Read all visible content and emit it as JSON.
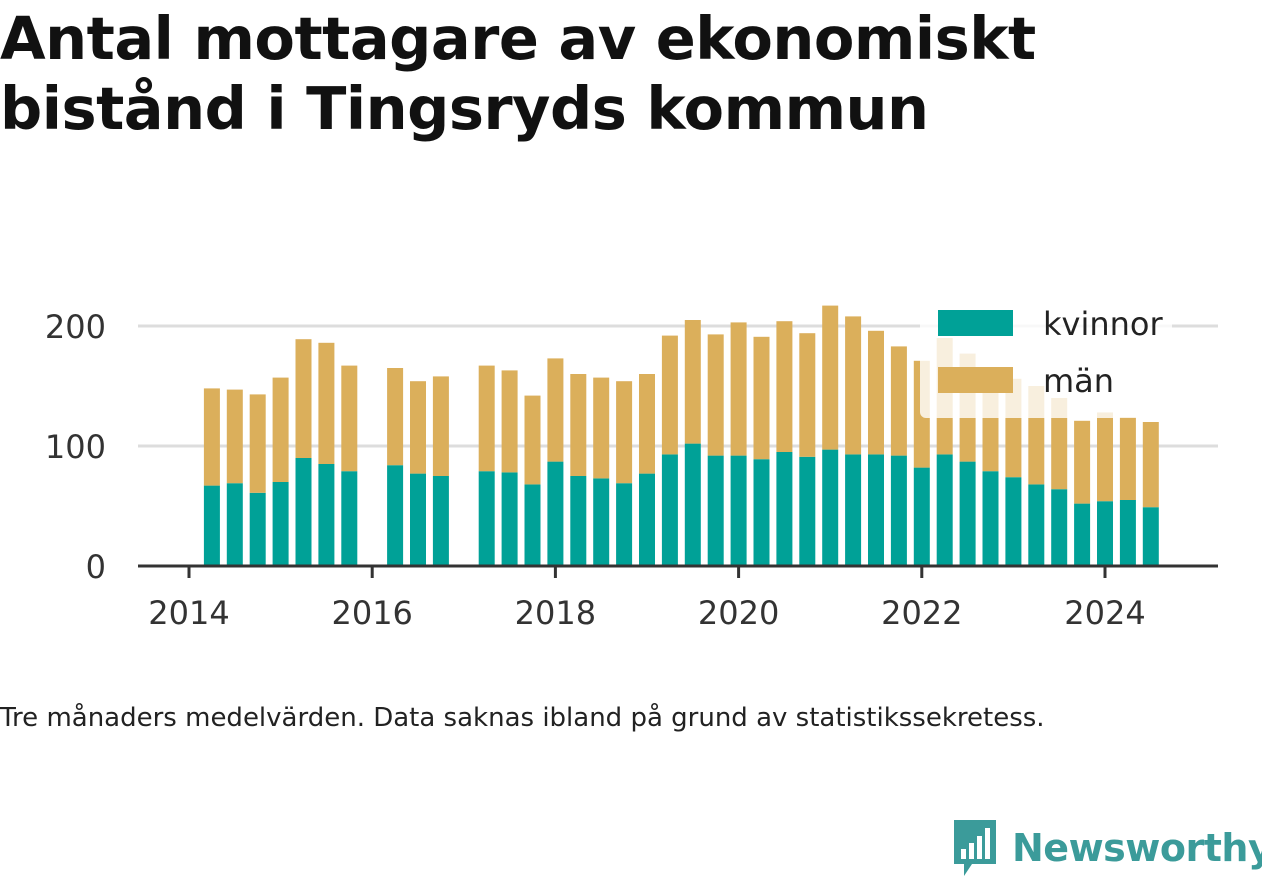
{
  "title": "Antal mottagare av ekonomiskt bistånd i Tingsryds kommun",
  "note": "Tre månaders medelvärden. Data saknas ibland på grund av statistikssekretess.",
  "brand": {
    "name": "Newsworthy",
    "color": "#3b9b9a",
    "icon": "bar-chart-speech-bubble-icon"
  },
  "colors": {
    "kvinnor": "#00a197",
    "man": "#dbaf5b",
    "grid": "#dddddd",
    "axis": "#333333"
  },
  "chart_data": {
    "type": "bar",
    "stacked": true,
    "ylim": [
      0,
      220
    ],
    "yticks": [
      0,
      100,
      200
    ],
    "xticks": [
      "2014",
      "2016",
      "2018",
      "2020",
      "2022",
      "2024"
    ],
    "xlim": [
      "2013-09",
      "2025-06"
    ],
    "legend_position": "top-right",
    "grid": true,
    "x": [
      "2014-04",
      "2014-07",
      "2014-10",
      "2015-01",
      "2015-04",
      "2015-07",
      "2015-10",
      "2016-01",
      "2016-04",
      "2016-07",
      "2016-10",
      "2017-01",
      "2017-04",
      "2017-07",
      "2017-10",
      "2018-01",
      "2018-04",
      "2018-07",
      "2018-10",
      "2019-01",
      "2019-04",
      "2019-07",
      "2019-10",
      "2020-01",
      "2020-04",
      "2020-07",
      "2020-10",
      "2021-01",
      "2021-04",
      "2021-07",
      "2021-10",
      "2022-01",
      "2022-04",
      "2022-07",
      "2022-10",
      "2023-01",
      "2023-04",
      "2023-07",
      "2023-10",
      "2024-01",
      "2024-04",
      "2024-07"
    ],
    "series": [
      {
        "name": "kvinnor",
        "values": [
          67,
          69,
          61,
          70,
          90,
          85,
          79,
          null,
          84,
          77,
          75,
          null,
          79,
          78,
          68,
          87,
          75,
          73,
          69,
          77,
          93,
          102,
          92,
          92,
          89,
          95,
          91,
          97,
          93,
          93,
          92,
          82,
          93,
          87,
          79,
          74,
          68,
          64,
          52,
          54,
          55,
          49
        ]
      },
      {
        "name": "män",
        "values": [
          81,
          78,
          82,
          87,
          99,
          101,
          88,
          null,
          81,
          77,
          83,
          null,
          88,
          85,
          74,
          86,
          85,
          84,
          85,
          83,
          99,
          103,
          101,
          111,
          102,
          109,
          103,
          120,
          115,
          103,
          91,
          89,
          97,
          90,
          79,
          82,
          82,
          76,
          69,
          74,
          69,
          71
        ]
      }
    ]
  }
}
